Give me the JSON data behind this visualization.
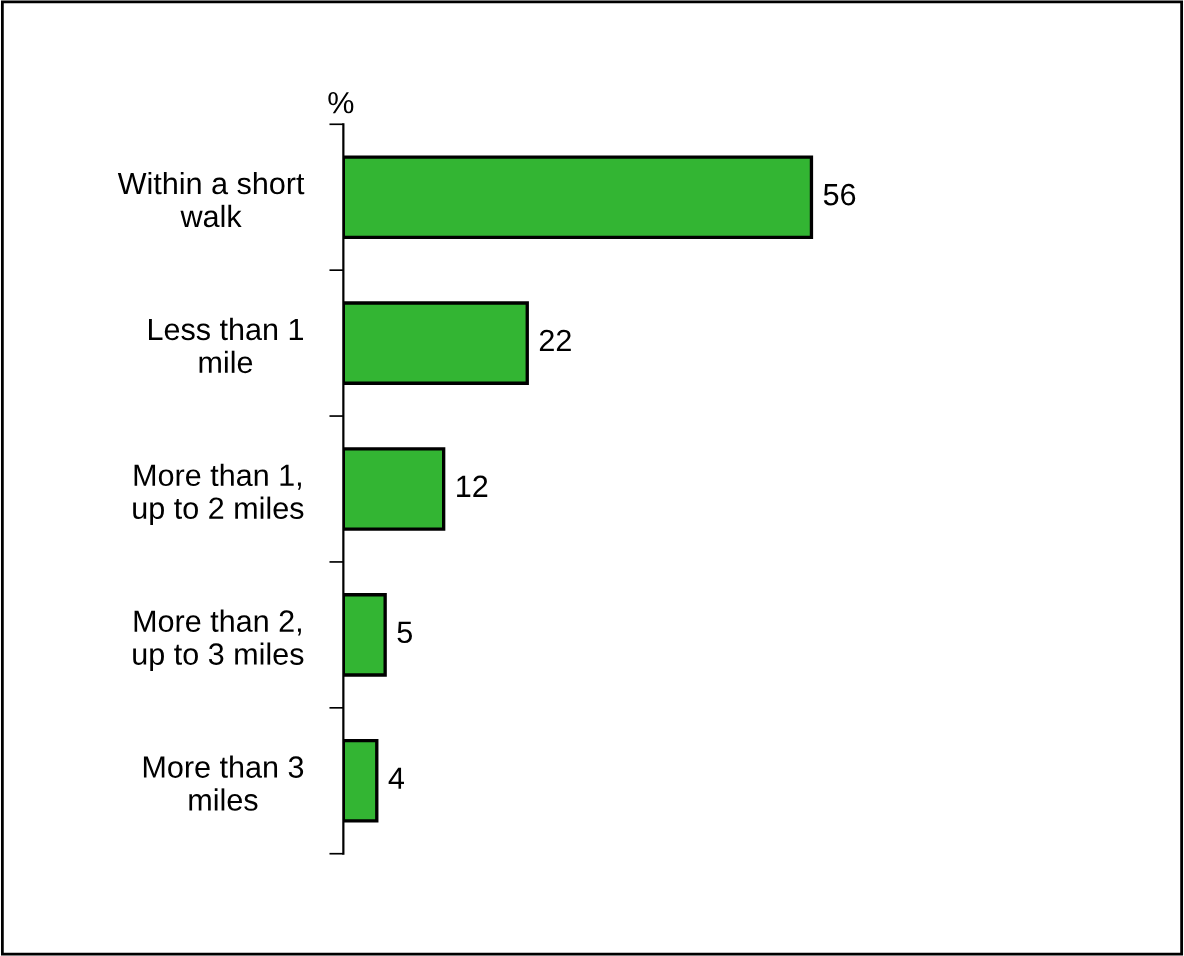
{
  "chart_data": {
    "type": "bar",
    "orientation": "horizontal",
    "ylabel": "%",
    "categories": [
      "Within a short\nwalk",
      "Less than 1\nmile",
      "More than 1,\nup to 2 miles",
      "More than 2,\nup to 3 miles",
      "More than 3\nmiles"
    ],
    "values": [
      56,
      22,
      12,
      5,
      4
    ],
    "color": "#33b533",
    "data_labels": true,
    "tick_labels": "y",
    "grid": false,
    "legend": false
  }
}
